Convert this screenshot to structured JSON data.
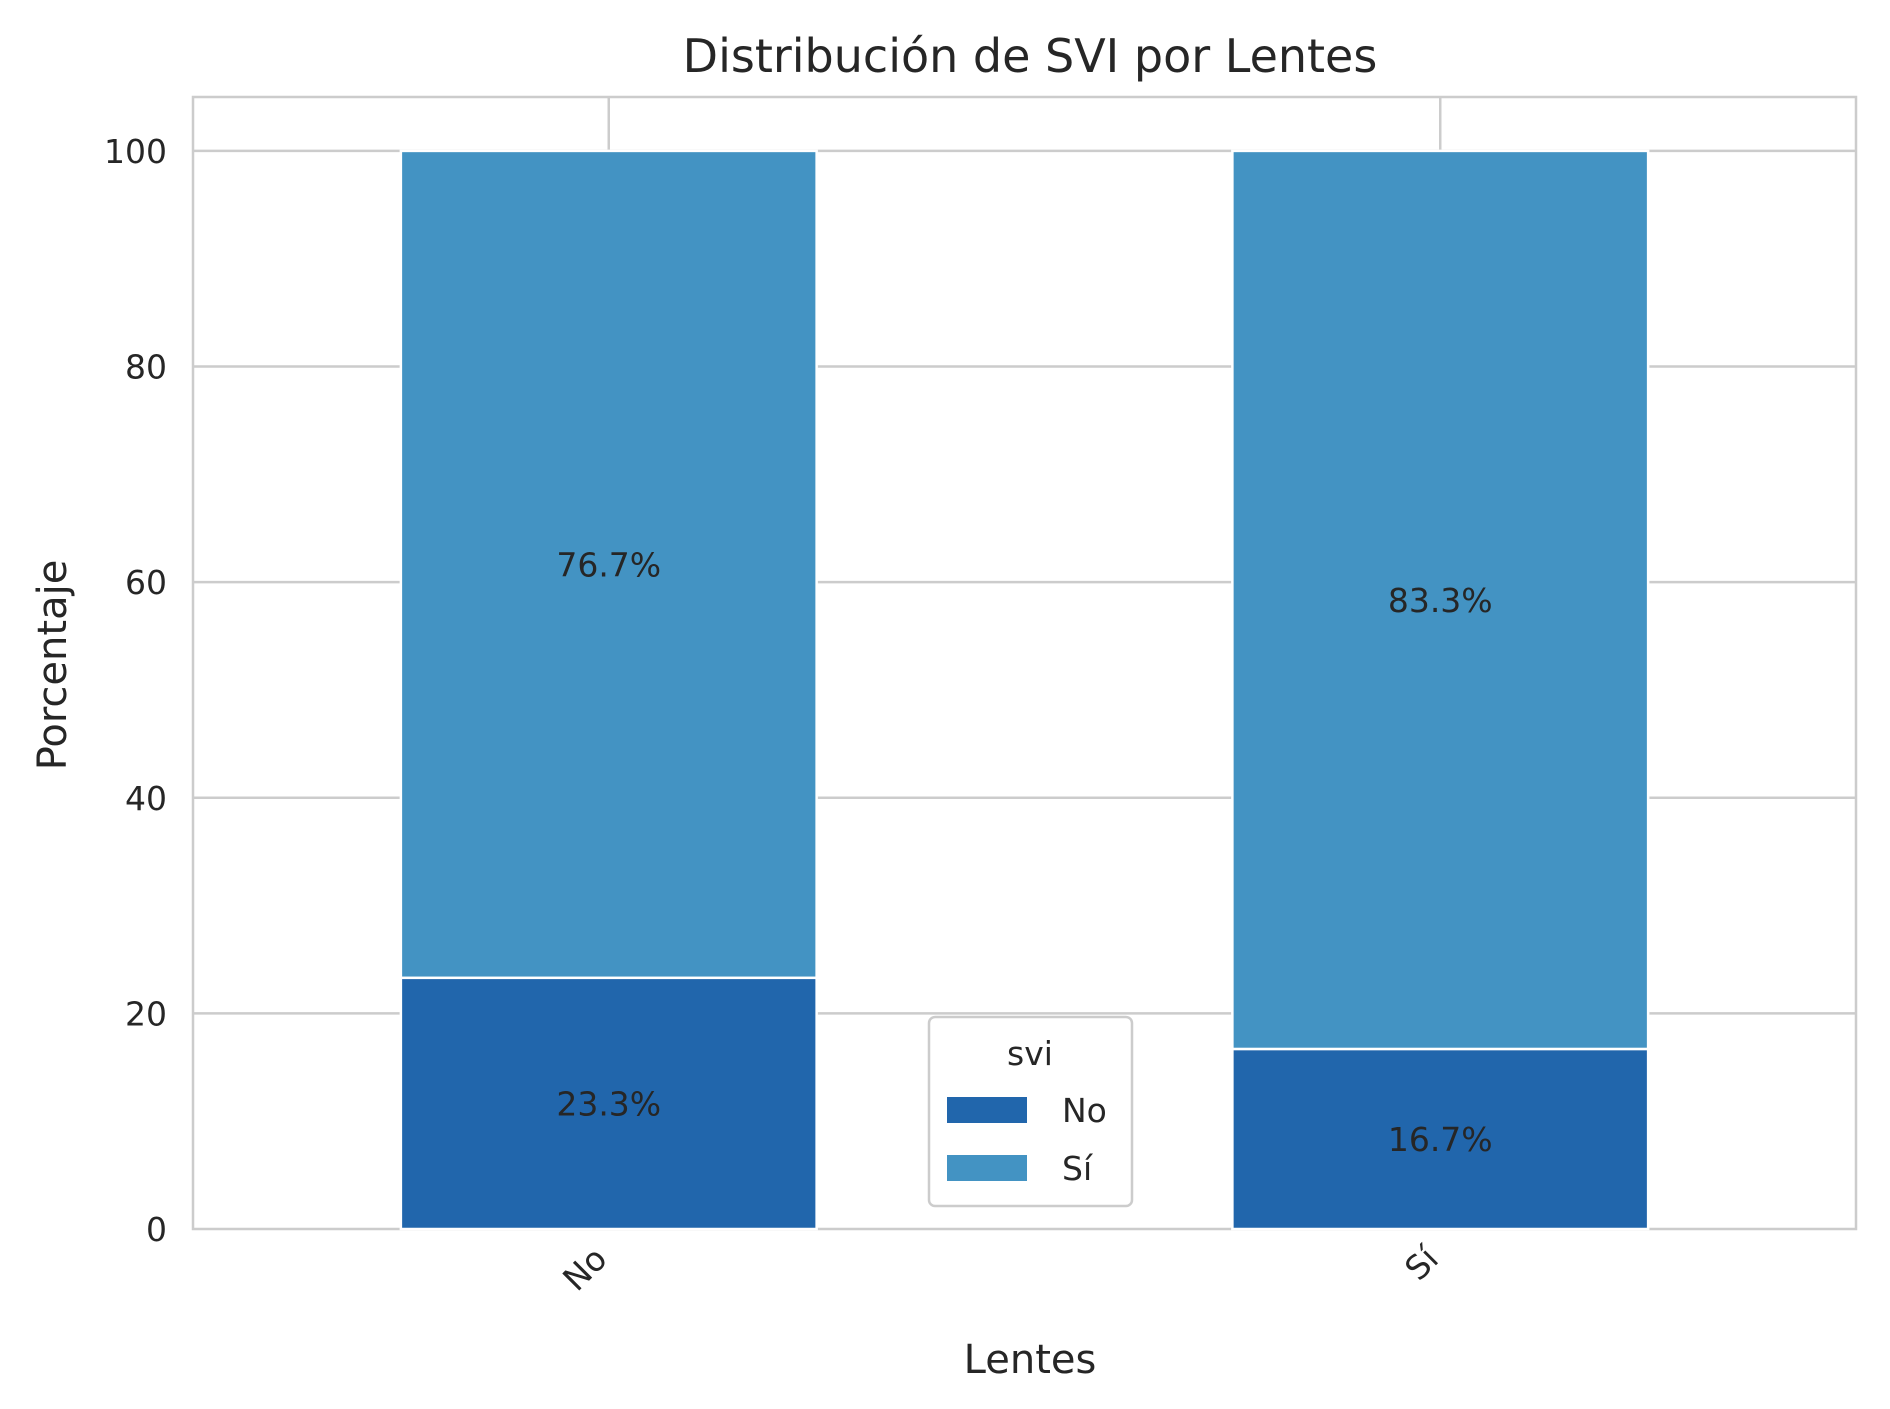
{
  "chart_data": {
    "type": "bar",
    "stacked": true,
    "title": "Distribución de SVI por Lentes",
    "xlabel": "Lentes",
    "ylabel": "Porcentaje",
    "categories": [
      "No",
      "Sí"
    ],
    "series": [
      {
        "name": "No",
        "values": [
          23.3,
          16.7
        ],
        "labels": [
          "23.3%",
          "16.7%"
        ],
        "color": "#2166ac"
      },
      {
        "name": "Sí",
        "values": [
          76.7,
          83.3
        ],
        "labels": [
          "76.7%",
          "83.3%"
        ],
        "color": "#4393c3"
      }
    ],
    "ylim": [
      0,
      105
    ],
    "yticks": [
      0,
      20,
      40,
      60,
      80,
      100
    ],
    "grid": true,
    "legend": {
      "title": "svi",
      "placement": "bottom-center"
    }
  }
}
